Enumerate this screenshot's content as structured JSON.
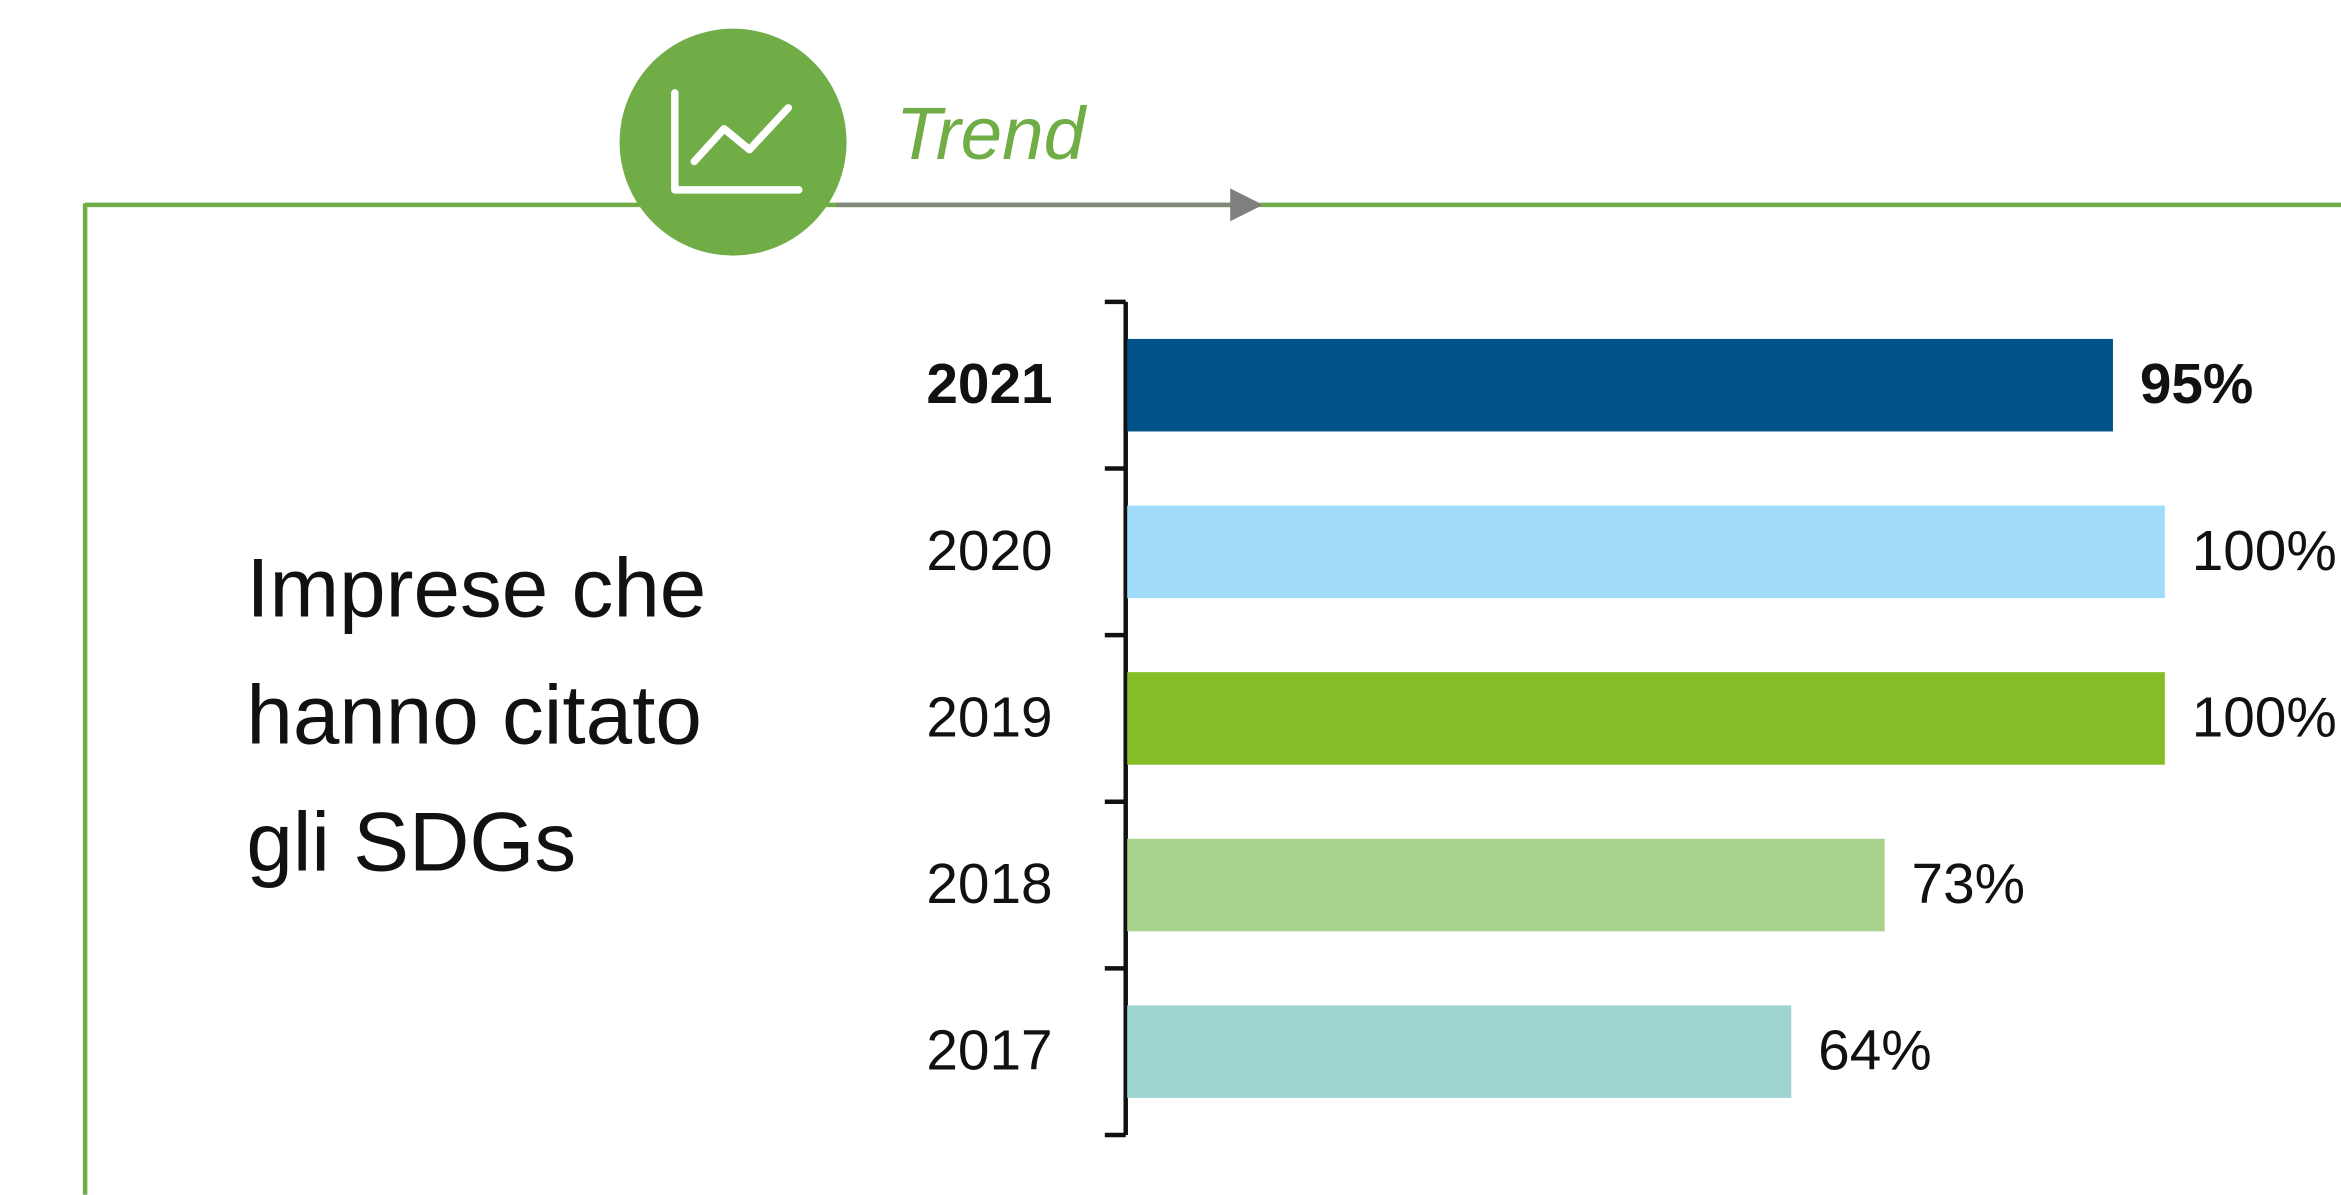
{
  "chart_data": {
    "type": "bar",
    "orientation": "horizontal",
    "title": "Trend",
    "label": [
      "Imprese che",
      "hanno citato",
      "gli SDGs"
    ],
    "categories": [
      "2021",
      "2020",
      "2019",
      "2018",
      "2017"
    ],
    "values": [
      95,
      100,
      100,
      73,
      64
    ],
    "value_labels": [
      "95%",
      "100%",
      "100%",
      "73%",
      "64%"
    ],
    "colors": [
      "#005288",
      "#a0dcfa",
      "#86bc25",
      "#a9d18e",
      "#9fd5d1"
    ],
    "xlim": [
      0,
      100
    ]
  }
}
